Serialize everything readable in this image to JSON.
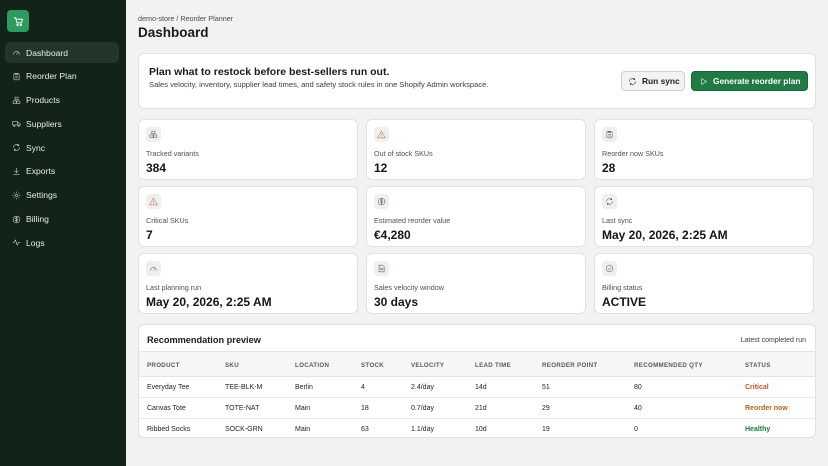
{
  "sidebar": {
    "items": [
      {
        "label": "Dashboard",
        "icon": "gauge-icon",
        "active": true
      },
      {
        "label": "Reorder Plan",
        "icon": "clipboard-icon"
      },
      {
        "label": "Products",
        "icon": "boxes-icon"
      },
      {
        "label": "Suppliers",
        "icon": "truck-icon"
      },
      {
        "label": "Sync",
        "icon": "refresh-icon"
      },
      {
        "label": "Exports",
        "icon": "download-icon"
      },
      {
        "label": "Settings",
        "icon": "gear-icon"
      },
      {
        "label": "Billing",
        "icon": "dollar-icon"
      },
      {
        "label": "Logs",
        "icon": "activity-icon"
      }
    ]
  },
  "header": {
    "breadcrumb": "demo-store / Reorder Planner",
    "title": "Dashboard"
  },
  "hero": {
    "heading": "Plan what to restock before best-sellers run out.",
    "description": "Sales velocity, inventory, supplier lead times, and safety stock rules in one Shopify Admin workspace.",
    "sync_label": "Run sync",
    "generate_label": "Generate reorder plan"
  },
  "stats": [
    {
      "label": "Tracked variants",
      "value": "384",
      "icon": "boxes-icon"
    },
    {
      "label": "Out of stock SKUs",
      "value": "12",
      "icon": "warning-icon"
    },
    {
      "label": "Reorder now SKUs",
      "value": "28",
      "icon": "clipboard-icon"
    },
    {
      "label": "Critical SKUs",
      "value": "7",
      "icon": "warning-icon"
    },
    {
      "label": "Estimated reorder value",
      "value": "€4,280",
      "icon": "dollar-icon"
    },
    {
      "label": "Last sync",
      "value": "May 20, 2026, 2:25 AM",
      "icon": "refresh-icon"
    },
    {
      "label": "Last planning run",
      "value": "May 20, 2026, 2:25 AM",
      "icon": "gauge-icon"
    },
    {
      "label": "Sales velocity window",
      "value": "30 days",
      "icon": "document-icon"
    },
    {
      "label": "Billing status",
      "value": "ACTIVE",
      "icon": "check-circle-icon"
    }
  ],
  "preview": {
    "title": "Recommendation preview",
    "subtitle": "Latest completed run",
    "columns": [
      "PRODUCT",
      "SKU",
      "LOCATION",
      "STOCK",
      "VELOCITY",
      "LEAD TIME",
      "REORDER POINT",
      "RECOMMENDED QTY",
      "STATUS"
    ],
    "rows": [
      {
        "product": "Everyday Tee",
        "sku": "TEE-BLK-M",
        "location": "Berlin",
        "stock": "4",
        "velocity": "2.4/day",
        "lead_time": "14d",
        "reorder_point": "51",
        "recommended_qty": "80",
        "status": "Critical"
      },
      {
        "product": "Canvas Tote",
        "sku": "TOTE-NAT",
        "location": "Main",
        "stock": "18",
        "velocity": "0.7/day",
        "lead_time": "21d",
        "reorder_point": "29",
        "recommended_qty": "40",
        "status": "Reorder now"
      },
      {
        "product": "Ribbed Socks",
        "sku": "SOCK-GRN",
        "location": "Main",
        "stock": "63",
        "velocity": "1.1/day",
        "lead_time": "10d",
        "reorder_point": "19",
        "recommended_qty": "0",
        "status": "Healthy"
      }
    ]
  },
  "colors": {
    "sidebar_bg": "#122319",
    "brand_green": "#1f7a44",
    "critical": "#b9572a",
    "reorder": "#b86318",
    "healthy": "#1f7a44"
  }
}
